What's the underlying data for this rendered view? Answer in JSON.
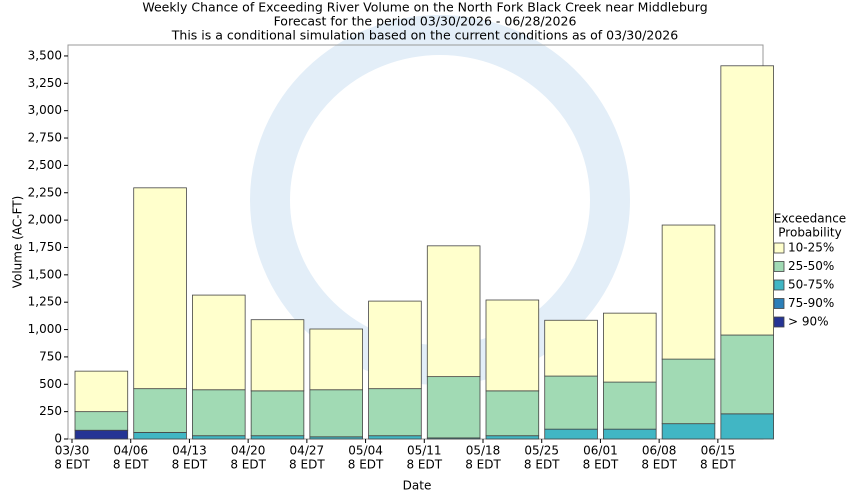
{
  "chart_data": {
    "type": "stacked_bar",
    "title": [
      "Weekly Chance of Exceeding River Volume on the North Fork Black Creek near Middleburg",
      "Forecast for the period 03/30/2026 - 06/28/2026",
      "This is a conditional simulation based on the current conditions as of 03/30/2026"
    ],
    "xlabel": "Date",
    "ylabel": "Volume (AC-FT)",
    "legend_title": [
      "Exceedance",
      "Probability"
    ],
    "legend_position": "right",
    "categories": [
      [
        "03/30",
        "8 EDT"
      ],
      [
        "04/06",
        "8 EDT"
      ],
      [
        "04/13",
        "8 EDT"
      ],
      [
        "04/20",
        "8 EDT"
      ],
      [
        "04/27",
        "8 EDT"
      ],
      [
        "05/04",
        "8 EDT"
      ],
      [
        "05/11",
        "8 EDT"
      ],
      [
        "05/18",
        "8 EDT"
      ],
      [
        "05/25",
        "8 EDT"
      ],
      [
        "06/01",
        "8 EDT"
      ],
      [
        "06/08",
        "8 EDT"
      ],
      [
        "06/15",
        "8 EDT"
      ]
    ],
    "series": [
      {
        "name": "> 90%",
        "color": "#253494",
        "values": [
          80,
          0,
          0,
          0,
          0,
          0,
          0,
          0,
          0,
          0,
          0,
          0
        ]
      },
      {
        "name": "75-90%",
        "color": "#2c7fb8",
        "values": [
          0,
          0,
          0,
          0,
          0,
          0,
          0,
          0,
          0,
          0,
          0,
          0
        ]
      },
      {
        "name": "50-75%",
        "color": "#41b6c4",
        "values": [
          0,
          60,
          30,
          30,
          20,
          30,
          10,
          30,
          90,
          90,
          140,
          230
        ]
      },
      {
        "name": "25-50%",
        "color": "#a1dab4",
        "values": [
          170,
          400,
          420,
          410,
          430,
          430,
          560,
          410,
          485,
          430,
          590,
          720
        ]
      },
      {
        "name": "10-25%",
        "color": "#ffffcc",
        "values": [
          370,
          1835,
          865,
          650,
          555,
          800,
          1195,
          830,
          510,
          630,
          1225,
          2460
        ]
      }
    ],
    "ylim": [
      0,
      3600
    ],
    "yticks": [
      0,
      250,
      500,
      750,
      {
        "value": 1000,
        "label": "1,000"
      },
      {
        "value": 1250,
        "label": "1,250"
      },
      {
        "value": 1500,
        "label": "1,500"
      },
      {
        "value": 1750,
        "label": "1,750"
      },
      {
        "value": 2000,
        "label": "2,000"
      },
      {
        "value": 2250,
        "label": "2,250"
      },
      {
        "value": 2500,
        "label": "2,500"
      },
      {
        "value": 2750,
        "label": "2,750"
      },
      {
        "value": 3000,
        "label": "3,000"
      },
      {
        "value": 3250,
        "label": "3,250"
      },
      {
        "value": 3500,
        "label": "3,500"
      }
    ],
    "grid": false
  }
}
